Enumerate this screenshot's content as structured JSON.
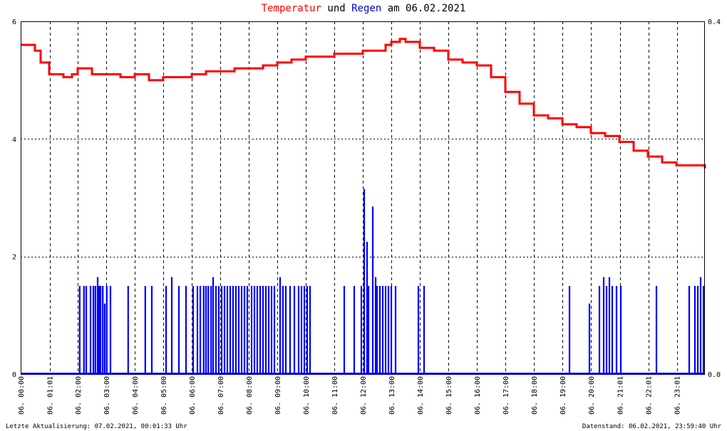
{
  "title": {
    "part1": "Temperatur",
    "part2": "und",
    "part3": "Regen",
    "part4": "am 06.02.2021"
  },
  "footer": {
    "left": "Letzte Aktualisierung: 07.02.2021, 00:01:33 Uhr",
    "right": "Datenstand: 06.02.2021, 23:59:40 Uhr"
  },
  "colors": {
    "temperature": "#ff0000",
    "rain": "#0000ff",
    "grid": "#000000"
  },
  "chart_data": {
    "type": "line",
    "x_range_hours": [
      0,
      24
    ],
    "left_axis": {
      "ylim": [
        0,
        6
      ],
      "ticks": [
        "0",
        "2",
        "4",
        "6"
      ]
    },
    "right_axis": {
      "ylim": [
        0,
        0.4
      ],
      "ticks": [
        "0.0",
        "0.4"
      ]
    },
    "x_tick_labels": [
      "06. 00:00",
      "06. 01:01",
      "06. 02:00",
      "06. 03:00",
      "06. 04:00",
      "06. 05:00",
      "06. 06:00",
      "06. 07:00",
      "06. 08:00",
      "06. 09:00",
      "06. 10:00",
      "06. 11:00",
      "06. 12:00",
      "06. 13:00",
      "06. 14:00",
      "06. 15:00",
      "06. 16:00",
      "06. 17:00",
      "06. 18:00",
      "06. 19:00",
      "06. 20:00",
      "06. 21:01",
      "06. 22:01",
      "06. 23:01"
    ],
    "x_tick_hours": [
      0,
      1.017,
      2,
      3,
      4,
      5,
      6,
      7,
      8,
      9,
      10,
      11,
      12,
      13,
      14,
      15,
      16,
      17,
      18,
      19,
      20,
      21.017,
      22.017,
      23.017
    ],
    "grid": true,
    "series": [
      {
        "name": "Temperatur",
        "axis": "left",
        "x": [
          0,
          0.3,
          0.5,
          0.7,
          1.0,
          1.5,
          1.8,
          2.0,
          2.5,
          3.0,
          3.5,
          4.0,
          4.5,
          5.0,
          5.5,
          6.0,
          6.5,
          7.0,
          7.5,
          8.0,
          8.5,
          9.0,
          9.5,
          10.0,
          10.5,
          11.0,
          11.5,
          12.0,
          12.5,
          12.8,
          13.0,
          13.3,
          13.5,
          14.0,
          14.5,
          15.0,
          15.5,
          16.0,
          16.5,
          17.0,
          17.5,
          18.0,
          18.5,
          19.0,
          19.5,
          20.0,
          20.5,
          21.0,
          21.5,
          22.0,
          22.5,
          23.0,
          23.5,
          24.0
        ],
        "y": [
          5.6,
          5.6,
          5.5,
          5.3,
          5.1,
          5.05,
          5.1,
          5.2,
          5.1,
          5.1,
          5.05,
          5.1,
          5.0,
          5.05,
          5.05,
          5.1,
          5.15,
          5.15,
          5.2,
          5.2,
          5.25,
          5.3,
          5.35,
          5.4,
          5.4,
          5.45,
          5.45,
          5.5,
          5.5,
          5.6,
          5.65,
          5.7,
          5.65,
          5.55,
          5.5,
          5.35,
          5.3,
          5.25,
          5.05,
          4.8,
          4.6,
          4.4,
          4.35,
          4.25,
          4.2,
          4.1,
          4.05,
          3.95,
          3.8,
          3.7,
          3.6,
          3.55,
          3.55,
          3.5
        ]
      },
      {
        "name": "Regen",
        "axis": "right",
        "x": [
          2.07,
          2.22,
          2.3,
          2.45,
          2.55,
          2.62,
          2.7,
          2.75,
          2.8,
          2.88,
          2.95,
          3.02,
          3.15,
          3.77,
          4.37,
          4.6,
          5.1,
          5.3,
          5.55,
          5.8,
          6.05,
          6.2,
          6.3,
          6.42,
          6.5,
          6.58,
          6.68,
          6.75,
          6.85,
          6.95,
          7.05,
          7.15,
          7.25,
          7.35,
          7.45,
          7.55,
          7.65,
          7.75,
          7.85,
          7.95,
          8.1,
          8.2,
          8.3,
          8.4,
          8.5,
          8.6,
          8.7,
          8.8,
          8.9,
          9.1,
          9.2,
          9.3,
          9.45,
          9.6,
          9.75,
          9.85,
          9.95,
          10.05,
          10.15,
          11.35,
          11.7,
          11.95,
          12.05,
          12.15,
          12.2,
          12.35,
          12.45,
          12.5,
          12.6,
          12.7,
          12.8,
          12.9,
          13.0,
          13.15,
          13.95,
          14.15,
          19.25,
          19.95,
          20.3,
          20.45,
          20.55,
          20.65,
          20.75,
          20.9,
          21.05,
          22.3,
          23.45,
          23.65,
          23.75,
          23.85,
          23.95
        ],
        "y": [
          0.1,
          0.1,
          0.1,
          0.1,
          0.1,
          0.1,
          0.11,
          0.1,
          0.1,
          0.1,
          0.08,
          0.1,
          0.1,
          0.1,
          0.1,
          0.1,
          0.1,
          0.11,
          0.1,
          0.1,
          0.1,
          0.1,
          0.1,
          0.1,
          0.1,
          0.1,
          0.1,
          0.11,
          0.1,
          0.1,
          0.1,
          0.1,
          0.1,
          0.1,
          0.1,
          0.1,
          0.1,
          0.1,
          0.1,
          0.1,
          0.1,
          0.1,
          0.1,
          0.1,
          0.1,
          0.1,
          0.1,
          0.1,
          0.1,
          0.11,
          0.1,
          0.1,
          0.1,
          0.1,
          0.1,
          0.1,
          0.1,
          0.1,
          0.1,
          0.1,
          0.1,
          0.1,
          0.21,
          0.15,
          0.1,
          0.19,
          0.11,
          0.1,
          0.1,
          0.1,
          0.1,
          0.1,
          0.1,
          0.1,
          0.1,
          0.1,
          0.1,
          0.08,
          0.1,
          0.11,
          0.1,
          0.11,
          0.1,
          0.1,
          0.1,
          0.1,
          0.1,
          0.1,
          0.1,
          0.11,
          0.1
        ]
      }
    ]
  }
}
